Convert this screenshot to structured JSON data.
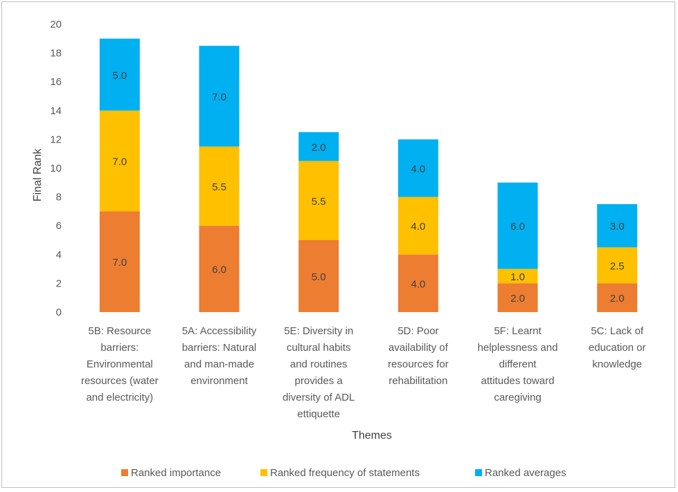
{
  "chart_data": {
    "type": "bar",
    "stacked": true,
    "xlabel": "Themes",
    "ylabel": "Final Rank",
    "ylim": [
      0,
      20
    ],
    "yticks": [
      0,
      2,
      4,
      6,
      8,
      10,
      12,
      14,
      16,
      18,
      20
    ],
    "grid": false,
    "legend_position": "bottom",
    "categories": [
      [
        "5B: Resource",
        "barriers:",
        "Environmental",
        "resources (water",
        "and electricity)"
      ],
      [
        "5A: Accessibility",
        "barriers: Natural",
        "and man-made",
        "environment"
      ],
      [
        "5E: Diversity in",
        "cultural habits",
        "and routines",
        "provides a",
        "diversity of ADL",
        "ettiquette"
      ],
      [
        "5D: Poor",
        "availability of",
        "resources for",
        "rehabilitation"
      ],
      [
        "5F: Learnt",
        "helplessness and",
        "different",
        "attitudes toward",
        "caregiving"
      ],
      [
        "5C: Lack of",
        "education or",
        "knowledge"
      ]
    ],
    "series": [
      {
        "name": "Ranked importance",
        "color": "#ed7d31",
        "values": [
          7.0,
          6.0,
          5.0,
          4.0,
          2.0,
          2.0
        ],
        "labels": [
          "7.0",
          "6.0",
          "5.0",
          "4.0",
          "2.0",
          "2.0"
        ]
      },
      {
        "name": "Ranked frequency of statements",
        "color": "#ffc000",
        "values": [
          7.0,
          5.5,
          5.5,
          4.0,
          1.0,
          2.5
        ],
        "labels": [
          "7.0",
          "5.5",
          "5.5",
          "4.0",
          "1.0",
          "2.5"
        ]
      },
      {
        "name": "Ranked averages",
        "color": "#00b0f0",
        "values": [
          5.0,
          7.0,
          2.0,
          4.0,
          6.0,
          3.0
        ],
        "labels": [
          "5.0",
          "7.0",
          "2.0",
          "4.0",
          "6.0",
          "3.0"
        ]
      }
    ]
  }
}
